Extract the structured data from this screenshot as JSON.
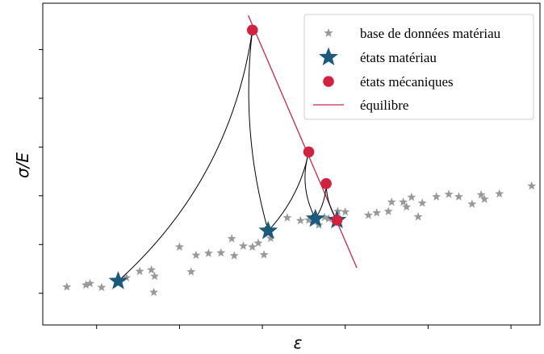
{
  "chart_data": {
    "type": "scatter",
    "title": "",
    "xlabel": "ε",
    "ylabel": "σ/E",
    "xlim": [
      -0.65,
      5.35
    ],
    "ylim": [
      -0.65,
      5.95
    ],
    "grid": false,
    "legend_position": "top-right",
    "show_tick_labels": false,
    "x_ticks": [
      0,
      1,
      2,
      3,
      4,
      5
    ],
    "y_ticks": [
      0,
      1,
      2,
      3,
      4,
      5
    ],
    "colors": {
      "database": "#999999",
      "material_state": "#1a5a7c",
      "mechanical_state": "#d2223f",
      "equilibrium": "#c8284c",
      "arrow": "#000000"
    },
    "series": [
      {
        "name": "base de données matériau",
        "kind": "star-small",
        "points": [
          [
            -0.36,
            0.13
          ],
          [
            -0.13,
            0.17
          ],
          [
            -0.08,
            0.2
          ],
          [
            0.06,
            0.12
          ],
          [
            0.26,
            0.25
          ],
          [
            0.36,
            0.32
          ],
          [
            0.52,
            0.45
          ],
          [
            0.66,
            0.48
          ],
          [
            0.7,
            0.35
          ],
          [
            0.69,
            0.02
          ],
          [
            1.0,
            0.95
          ],
          [
            1.14,
            0.44
          ],
          [
            1.2,
            0.78
          ],
          [
            1.35,
            0.82
          ],
          [
            1.5,
            0.83
          ],
          [
            1.63,
            1.12
          ],
          [
            1.66,
            0.77
          ],
          [
            1.77,
            0.97
          ],
          [
            1.88,
            0.95
          ],
          [
            1.95,
            1.03
          ],
          [
            2.02,
            0.79
          ],
          [
            2.07,
            1.28
          ],
          [
            2.1,
            1.13
          ],
          [
            2.3,
            1.55
          ],
          [
            2.46,
            1.49
          ],
          [
            2.56,
            1.5
          ],
          [
            2.68,
            1.4
          ],
          [
            2.75,
            1.56
          ],
          [
            2.8,
            1.53
          ],
          [
            2.91,
            1.68
          ],
          [
            3.0,
            1.67
          ],
          [
            3.28,
            1.6
          ],
          [
            3.38,
            1.65
          ],
          [
            3.52,
            1.68
          ],
          [
            3.56,
            1.87
          ],
          [
            3.7,
            1.87
          ],
          [
            3.74,
            1.77
          ],
          [
            3.8,
            1.97
          ],
          [
            3.88,
            1.57
          ],
          [
            3.93,
            1.85
          ],
          [
            4.1,
            1.98
          ],
          [
            4.25,
            2.03
          ],
          [
            4.37,
            1.98
          ],
          [
            4.53,
            1.83
          ],
          [
            4.64,
            2.02
          ],
          [
            4.68,
            1.93
          ],
          [
            4.86,
            2.04
          ],
          [
            5.25,
            2.2
          ]
        ]
      },
      {
        "name": "états matériau",
        "kind": "star-large",
        "points": [
          [
            0.26,
            0.25
          ],
          [
            2.07,
            1.28
          ],
          [
            2.64,
            1.53
          ],
          [
            2.9,
            1.5
          ]
        ]
      },
      {
        "name": "états mécaniques",
        "kind": "circle",
        "points": [
          [
            1.88,
            5.4
          ],
          [
            2.56,
            2.9
          ],
          [
            2.77,
            2.25
          ],
          [
            2.9,
            1.5
          ]
        ]
      },
      {
        "name": "équilibre",
        "kind": "line",
        "points": [
          [
            1.83,
            5.7
          ],
          [
            3.14,
            0.52
          ]
        ]
      }
    ],
    "arrows": [
      {
        "from": [
          0.26,
          0.25
        ],
        "to": [
          1.88,
          5.4
        ],
        "bend": 0.18
      },
      {
        "from": [
          1.88,
          5.4
        ],
        "to": [
          2.07,
          1.28
        ],
        "bend": 0.1
      },
      {
        "from": [
          2.07,
          1.28
        ],
        "to": [
          2.56,
          2.9
        ],
        "bend": 0.14
      },
      {
        "from": [
          2.56,
          2.9
        ],
        "to": [
          2.64,
          1.53
        ],
        "bend": 0.2
      },
      {
        "from": [
          2.64,
          1.53
        ],
        "to": [
          2.77,
          2.25
        ],
        "bend": 0.14
      },
      {
        "from": [
          2.77,
          2.25
        ],
        "to": [
          2.9,
          1.5
        ],
        "bend": 0.14
      }
    ]
  }
}
